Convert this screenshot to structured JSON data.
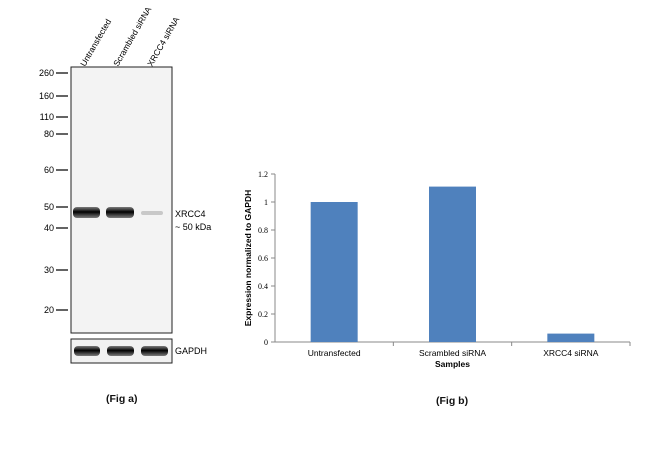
{
  "blot": {
    "lanes": [
      "Untransfected",
      "Scrambled siRNA",
      "XRCC4 siRNA"
    ],
    "mw_markers": [
      "260",
      "160",
      "110",
      "80",
      "60",
      "50",
      "40",
      "30",
      "20"
    ],
    "band_label_line1": "XRCC4",
    "band_label_line2": "~ 50 kDa",
    "loading_control_label": "GAPDH",
    "caption": "(Fig a)"
  },
  "chart_data": {
    "type": "bar",
    "categories": [
      "Untransfected",
      "Scrambled siRNA",
      "XRCC4 siRNA"
    ],
    "values": [
      1.0,
      1.11,
      0.06
    ],
    "title": "",
    "xlabel": "Samples",
    "ylabel": "Expression  normalized to GAPDH",
    "ylim": [
      0,
      1.2
    ],
    "yticks": [
      "0",
      "0.2",
      "0.4",
      "0.6",
      "0.8",
      "1",
      "1.2"
    ],
    "bar_color": "#4f81bd",
    "grid": false,
    "caption": "(Fig b)"
  }
}
